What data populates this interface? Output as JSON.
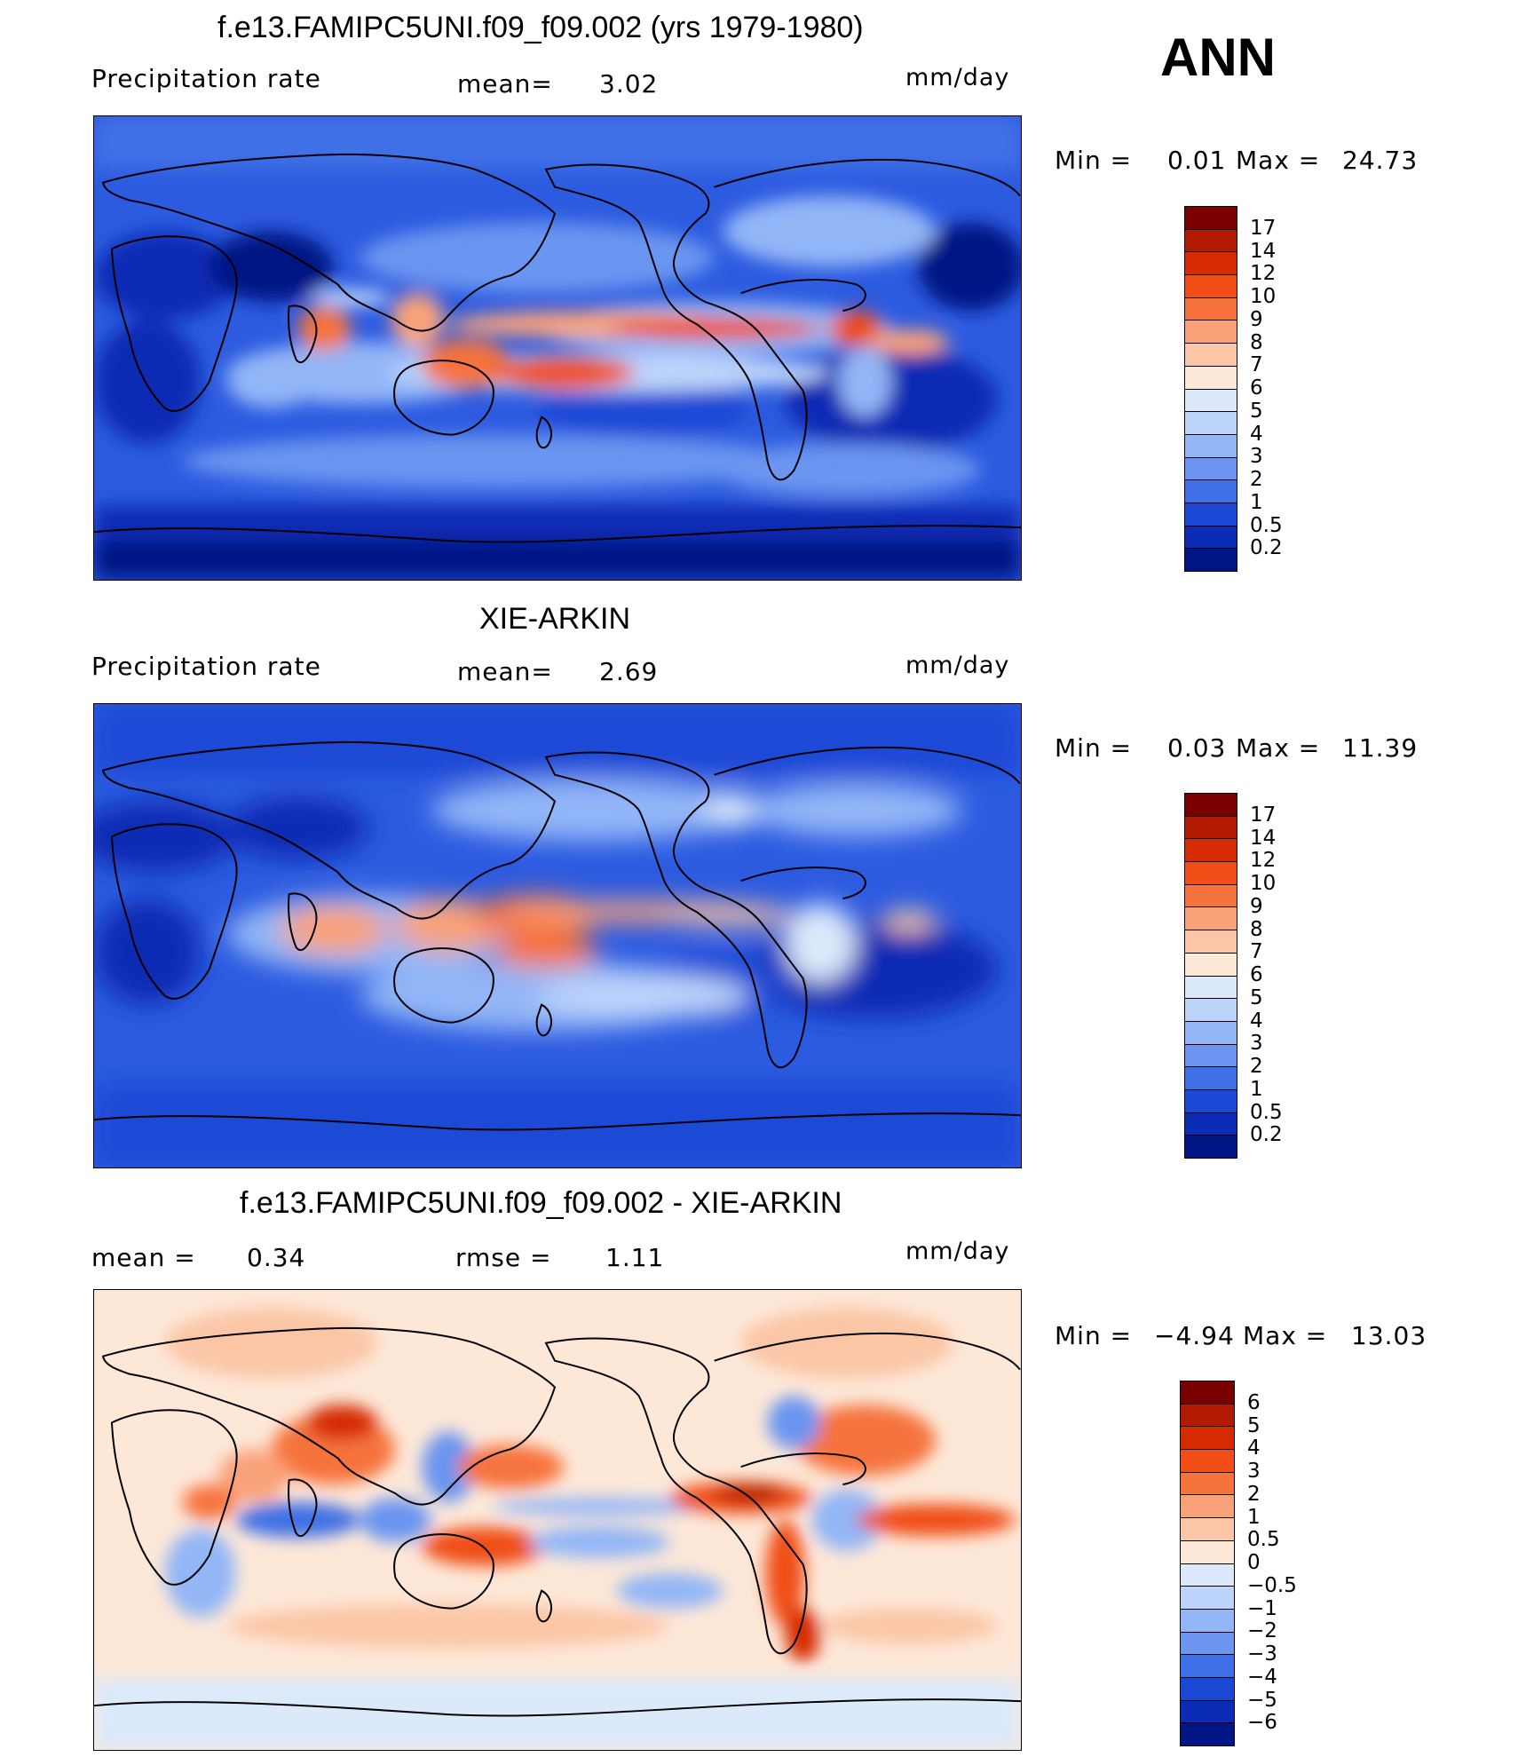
{
  "season": "ANN",
  "panels": [
    {
      "id": "model",
      "title": "f.e13.FAMIPC5UNI.f09_f09.002 (yrs 1979-1980)",
      "left_label": "Precipitation rate",
      "center_label": "mean=",
      "center_value": "3.02",
      "units": "mm/day",
      "min_label": "Min =",
      "min_value": "0.01",
      "max_label": "Max =",
      "max_value": "24.73",
      "palette": "absolute"
    },
    {
      "id": "obs",
      "title": "XIE-ARKIN",
      "left_label": "Precipitation rate",
      "center_label": "mean=",
      "center_value": "2.69",
      "units": "mm/day",
      "min_label": "Min =",
      "min_value": "0.03",
      "max_label": "Max =",
      "max_value": "11.39",
      "palette": "absolute"
    },
    {
      "id": "diff",
      "title": "f.e13.FAMIPC5UNI.f09_f09.002 - XIE-ARKIN",
      "left_label": "mean =",
      "left_value": "0.34",
      "center_label": "rmse =",
      "center_value": "1.11",
      "units": "mm/day",
      "min_label": "Min =",
      "min_value": "−4.94",
      "max_label": "Max =",
      "max_value": "13.03",
      "palette": "difference"
    }
  ],
  "colorbars": {
    "absolute": {
      "levels": [
        "17",
        "14",
        "12",
        "10",
        "9",
        "8",
        "7",
        "6",
        "5",
        "4",
        "3",
        "2",
        "1",
        "0.5",
        "0.2"
      ],
      "colors": [
        "#7a0000",
        "#b21a00",
        "#d62a00",
        "#f04d17",
        "#f6733c",
        "#f9a27a",
        "#fbc6a6",
        "#fde8d8",
        "#dce9fb",
        "#bcd3fb",
        "#93b6f7",
        "#6b95f0",
        "#3f6fe6",
        "#1c48d6",
        "#0b2cb4",
        "#001684"
      ]
    },
    "difference": {
      "levels": [
        "6",
        "5",
        "4",
        "3",
        "2",
        "1",
        "0.5",
        "0",
        "−0.5",
        "−1",
        "−2",
        "−3",
        "−4",
        "−5",
        "−6"
      ],
      "colors": [
        "#7a0000",
        "#b21a00",
        "#d62a00",
        "#f04d17",
        "#f6733c",
        "#f9a27a",
        "#fbc6a6",
        "#fde8d8",
        "#dce9fb",
        "#bcd3fb",
        "#93b6f7",
        "#6b95f0",
        "#3f6fe6",
        "#1c48d6",
        "#0b2cb4",
        "#001684"
      ]
    }
  }
}
